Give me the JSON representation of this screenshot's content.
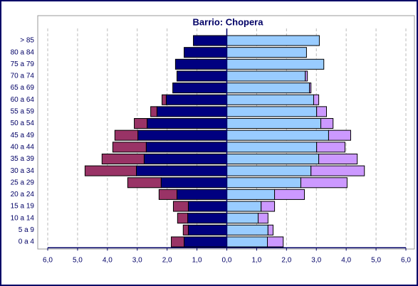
{
  "chart_data": {
    "type": "pyramid",
    "title": "Barrio: Chopera",
    "annotation": "%",
    "categories": [
      "> 85",
      "80 a 84",
      "75 a 79",
      "70 a 74",
      "65 a 69",
      "60 a 64",
      "55 a 59",
      "50 a 54",
      "45 a 49",
      "40 a 44",
      "35 a 39",
      "30 a 34",
      "25 a 29",
      "20 a 24",
      "15 a 19",
      "10 a 14",
      "5 a 9",
      "0 a 4"
    ],
    "series": [
      {
        "color": "#000080",
        "values": [
          -1.12,
          -1.43,
          -1.72,
          -1.67,
          -1.81,
          -2.03,
          -2.34,
          -2.67,
          -2.98,
          -2.7,
          -2.77,
          -3.03,
          -2.2,
          -1.67,
          -1.29,
          -1.31,
          -1.29,
          -1.43
        ]
      },
      {
        "color": "#993366",
        "values": [
          0,
          0,
          0,
          0,
          0,
          -0.14,
          -0.21,
          -0.43,
          -0.77,
          -1.12,
          -1.41,
          -1.72,
          -1.12,
          -0.6,
          -0.5,
          -0.34,
          -0.17,
          -0.43
        ]
      },
      {
        "color": "#99ccff",
        "values": [
          3.1,
          2.67,
          3.25,
          2.63,
          2.77,
          2.91,
          3.01,
          3.15,
          3.41,
          3.01,
          3.08,
          2.82,
          2.48,
          1.6,
          1.15,
          1.05,
          1.38,
          1.36
        ]
      },
      {
        "color": "#cc99ff",
        "values": [
          0,
          0,
          0,
          0.07,
          0.05,
          0.17,
          0.33,
          0.41,
          0.74,
          0.95,
          1.29,
          1.79,
          1.55,
          1.0,
          0.45,
          0.33,
          0.17,
          0.53
        ]
      }
    ],
    "xlim": [
      -6,
      6
    ],
    "xticks": [
      {
        "value": -6,
        "label": "6,0"
      },
      {
        "value": -5,
        "label": "5,0"
      },
      {
        "value": -4,
        "label": "4,0"
      },
      {
        "value": -3,
        "label": "3,0"
      },
      {
        "value": -2,
        "label": "2,0"
      },
      {
        "value": -1,
        "label": "1,0"
      },
      {
        "value": 0,
        "label": "0,0"
      },
      {
        "value": 1,
        "label": "1,0"
      },
      {
        "value": 2,
        "label": "2,0"
      },
      {
        "value": 3,
        "label": "3,0"
      },
      {
        "value": 4,
        "label": "4,0"
      },
      {
        "value": 5,
        "label": "5,0"
      },
      {
        "value": 6,
        "label": "6,0"
      }
    ],
    "grid": true
  }
}
